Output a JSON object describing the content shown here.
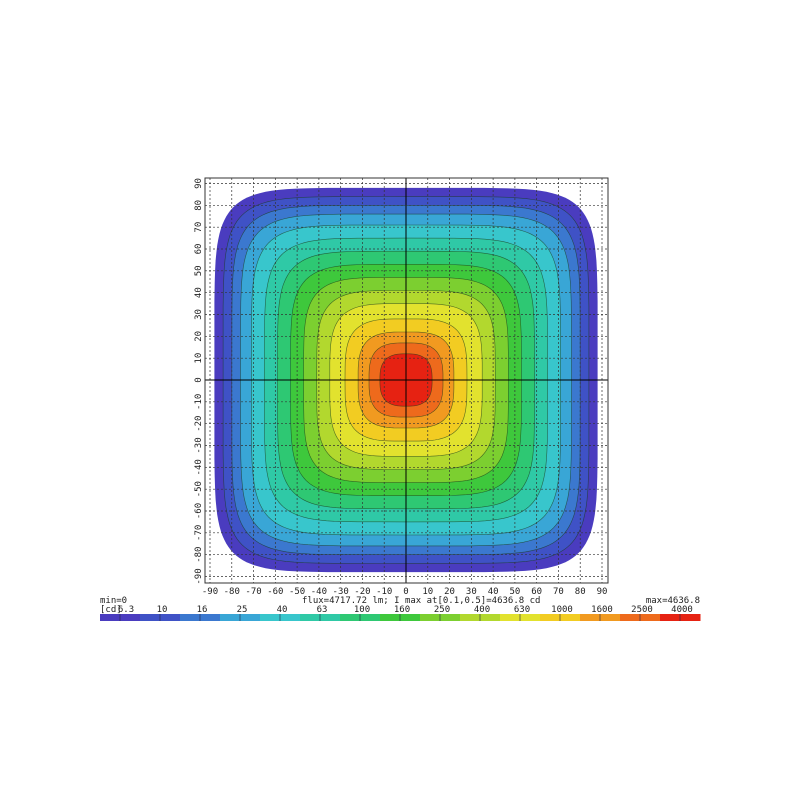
{
  "chart_data": {
    "type": "heatmap",
    "title": "",
    "xlabel": "",
    "ylabel": "",
    "xlim": [
      -90,
      90
    ],
    "ylim": [
      -90,
      90
    ],
    "xticks": [
      -90,
      -80,
      -70,
      -60,
      -50,
      -40,
      -30,
      -20,
      -10,
      0,
      10,
      20,
      30,
      40,
      50,
      60,
      70,
      80,
      90
    ],
    "yticks": [
      -90,
      -80,
      -70,
      -60,
      -50,
      -40,
      -30,
      -20,
      -10,
      0,
      10,
      20,
      30,
      40,
      50,
      60,
      70,
      80,
      90
    ],
    "grid": true,
    "min_label": "min=0",
    "max_label": "max=4636.8",
    "info": "flux=4717.72 lm; I max at[0.1,0.5]=4636.8 cd",
    "unit": "[cd]",
    "levels": [
      {
        "value": "6.3",
        "color": "#4a3cbf",
        "extent": 88
      },
      {
        "value": "10",
        "color": "#3f52c6",
        "extent": 84
      },
      {
        "value": "16",
        "color": "#3b78cf",
        "extent": 80
      },
      {
        "value": "25",
        "color": "#39a6d6",
        "extent": 76
      },
      {
        "value": "40",
        "color": "#38c6cc",
        "extent": 71
      },
      {
        "value": "63",
        "color": "#2fc9a6",
        "extent": 65
      },
      {
        "value": "100",
        "color": "#2ec873",
        "extent": 59
      },
      {
        "value": "160",
        "color": "#3ec83c",
        "extent": 53
      },
      {
        "value": "250",
        "color": "#7ccf30",
        "extent": 47
      },
      {
        "value": "400",
        "color": "#b2d82e",
        "extent": 41
      },
      {
        "value": "630",
        "color": "#e2e22e",
        "extent": 35
      },
      {
        "value": "1000",
        "color": "#f2cc22",
        "extent": 28
      },
      {
        "value": "1600",
        "color": "#f19a20",
        "extent": 22
      },
      {
        "value": "2500",
        "color": "#ee6a1c",
        "extent": 17
      },
      {
        "value": "4000",
        "color": "#e62212",
        "extent": 12
      }
    ]
  }
}
